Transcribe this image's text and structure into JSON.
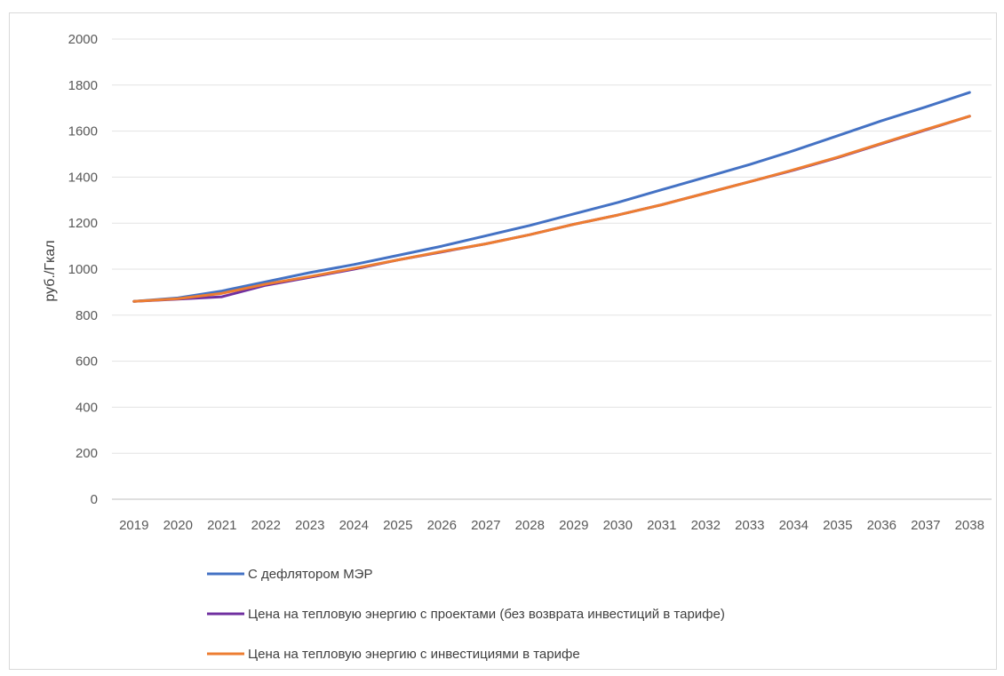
{
  "chart_data": {
    "type": "line",
    "title": "",
    "xlabel": "",
    "ylabel": "руб./Гкал",
    "ylim": [
      0,
      2000
    ],
    "yticks": [
      "0",
      "200",
      "400",
      "600",
      "800",
      "1000",
      "1200",
      "1400",
      "1600",
      "1800",
      "2000"
    ],
    "grid": true,
    "legend_position": "bottom",
    "categories": [
      "2019",
      "2020",
      "2021",
      "2022",
      "2023",
      "2024",
      "2025",
      "2026",
      "2027",
      "2028",
      "2029",
      "2030",
      "2031",
      "2032",
      "2033",
      "2034",
      "2035",
      "2036",
      "2037",
      "2038"
    ],
    "series": [
      {
        "name": "С дефлятором МЭР",
        "color": "#4472c4",
        "values": [
          860,
          875,
          905,
          945,
          985,
          1020,
          1060,
          1100,
          1145,
          1190,
          1240,
          1290,
          1345,
          1400,
          1455,
          1515,
          1580,
          1645,
          1705,
          1768
        ]
      },
      {
        "name": "Цена на тепловую энергию  с проектами (без возврата инвестиций в тарифе)",
        "color": "#7030a0",
        "values": [
          860,
          870,
          880,
          930,
          965,
          1000,
          1040,
          1075,
          1110,
          1150,
          1195,
          1235,
          1280,
          1330,
          1380,
          1430,
          1485,
          1545,
          1605,
          1665
        ]
      },
      {
        "name": "Цена на тепловую энергию с инвестициями в тарифе",
        "color": "#ed7d31",
        "values": [
          860,
          872,
          895,
          935,
          968,
          1003,
          1040,
          1077,
          1110,
          1150,
          1195,
          1235,
          1280,
          1330,
          1380,
          1432,
          1487,
          1547,
          1607,
          1665
        ]
      }
    ]
  }
}
